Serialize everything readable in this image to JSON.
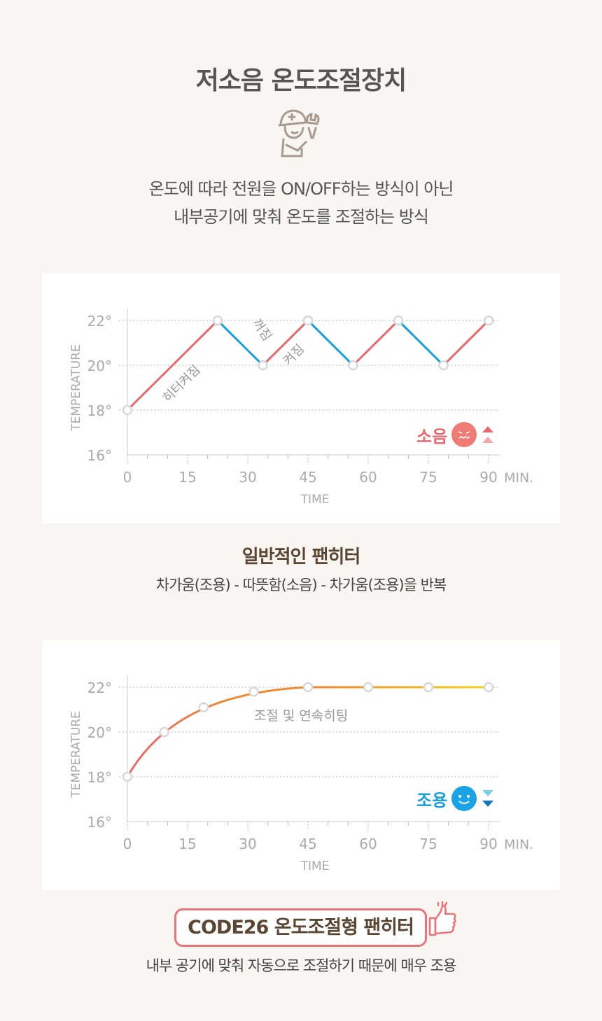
{
  "header": {
    "title": "저소음 온도조절장치",
    "icon": "repairman-wrench-icon",
    "desc_line1": "온도에 따라 전원을 ON/OFF하는 방식이 아닌",
    "desc_line2": "내부공기에 맞춰 온도를 조절하는 방식"
  },
  "section1": {
    "title": "일반적인 팬히터",
    "desc": "차가움(조용) - 따뜻함(소음) - 차가움(조용)을 반복",
    "noise_label": "소음",
    "noise_icon": "angry-face-icon",
    "arrow_icon": "up-arrows-icon"
  },
  "section2": {
    "title": "CODE26 온도조절형 팬히터",
    "desc": "내부 공기에 맞춰 자동으로 조절하기 때문에 매우 조용",
    "quiet_label": "조용",
    "quiet_icon": "smile-face-icon",
    "arrow_icon": "down-arrows-icon",
    "thumb_icon": "thumbs-up-icon"
  },
  "chart_data": [
    {
      "type": "line",
      "title": "일반적인 팬히터",
      "xlabel": "TIME",
      "ylabel": "TEMPERATURE",
      "x_unit": "MIN.",
      "xlim": [
        0,
        90
      ],
      "ylim": [
        16,
        22
      ],
      "x_ticks": [
        "0",
        "15",
        "30",
        "45",
        "60",
        "75",
        "90"
      ],
      "y_ticks": [
        "16°",
        "18°",
        "20°",
        "22°"
      ],
      "x": [
        0,
        22.5,
        33.75,
        45,
        56.25,
        67.5,
        78.75,
        90
      ],
      "y": [
        18,
        22,
        20,
        22,
        20,
        22,
        20,
        22
      ],
      "annotations": [
        "히터켜짐",
        "꺼짐",
        "켜짐"
      ],
      "colors": {
        "heating": "#e56a6f",
        "cooling": "#1aa0d8"
      }
    },
    {
      "type": "line",
      "title": "CODE26 온도조절형 팬히터",
      "xlabel": "TIME",
      "ylabel": "TEMPERATURE",
      "x_unit": "MIN.",
      "xlim": [
        0,
        90
      ],
      "ylim": [
        16,
        22
      ],
      "x_ticks": [
        "0",
        "15",
        "30",
        "45",
        "60",
        "75",
        "90"
      ],
      "y_ticks": [
        "16°",
        "18°",
        "20°",
        "22°"
      ],
      "x": [
        0,
        9.2,
        19,
        31.5,
        45,
        60,
        75,
        90
      ],
      "y": [
        18,
        20,
        21.1,
        21.8,
        22,
        22,
        22,
        22
      ],
      "annotations": [
        "조절 및 연속히팅"
      ],
      "colors": {
        "start": "#e56a6f",
        "mid": "#ef8a30",
        "end": "#f5d31c"
      }
    }
  ]
}
